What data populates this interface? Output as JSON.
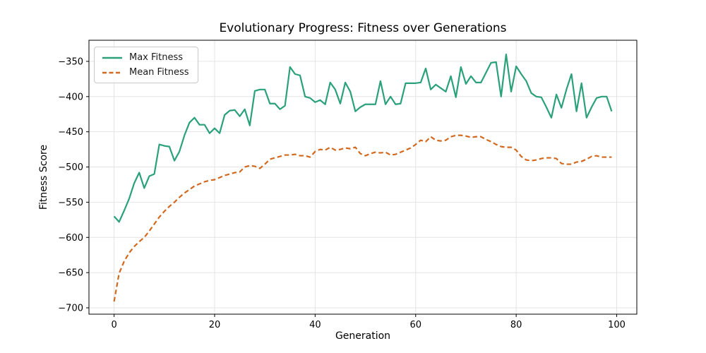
{
  "chart_data": {
    "type": "line",
    "title": "Evolutionary Progress: Fitness over Generations",
    "xlabel": "Generation",
    "ylabel": "Fitness Score",
    "xlim": [
      -5,
      104
    ],
    "ylim": [
      -709,
      -320
    ],
    "grid": true,
    "grid_color": "#e4e4e4",
    "spine_color": "#000000",
    "legend_position": "upper left",
    "xticks": [
      {
        "v": 0,
        "label": "0"
      },
      {
        "v": 20,
        "label": "20"
      },
      {
        "v": 40,
        "label": "40"
      },
      {
        "v": 60,
        "label": "60"
      },
      {
        "v": 80,
        "label": "80"
      },
      {
        "v": 100,
        "label": "100"
      }
    ],
    "yticks": [
      {
        "v": -350,
        "label": "−350"
      },
      {
        "v": -400,
        "label": "−400"
      },
      {
        "v": -450,
        "label": "−450"
      },
      {
        "v": -500,
        "label": "−500"
      },
      {
        "v": -550,
        "label": "−550"
      },
      {
        "v": -600,
        "label": "−600"
      },
      {
        "v": -650,
        "label": "−650"
      },
      {
        "v": -700,
        "label": "−700"
      }
    ],
    "x": [
      0,
      1,
      2,
      3,
      4,
      5,
      6,
      7,
      8,
      9,
      10,
      11,
      12,
      13,
      14,
      15,
      16,
      17,
      18,
      19,
      20,
      21,
      22,
      23,
      24,
      25,
      26,
      27,
      28,
      29,
      30,
      31,
      32,
      33,
      34,
      35,
      36,
      37,
      38,
      39,
      40,
      41,
      42,
      43,
      44,
      45,
      46,
      47,
      48,
      49,
      50,
      51,
      52,
      53,
      54,
      55,
      56,
      57,
      58,
      59,
      60,
      61,
      62,
      63,
      64,
      65,
      66,
      67,
      68,
      69,
      70,
      71,
      72,
      73,
      74,
      75,
      76,
      77,
      78,
      79,
      80,
      81,
      82,
      83,
      84,
      85,
      86,
      87,
      88,
      89,
      90,
      91,
      92,
      93,
      94,
      95,
      96,
      97,
      98,
      99
    ],
    "series": [
      {
        "name": "Max Fitness",
        "color": "#2aa179",
        "style": "solid",
        "values": [
          -570,
          -578,
          -562,
          -545,
          -523,
          -508,
          -530,
          -513,
          -510,
          -468,
          -470,
          -471,
          -491,
          -478,
          -455,
          -437,
          -430,
          -440,
          -440,
          -452,
          -445,
          -452,
          -426,
          -420,
          -419,
          -428,
          -418,
          -441,
          -392,
          -390,
          -390,
          -410,
          -410,
          -418,
          -413,
          -358,
          -368,
          -370,
          -400,
          -402,
          -408,
          -405,
          -411,
          -380,
          -390,
          -410,
          -380,
          -393,
          -421,
          -415,
          -411,
          -411,
          -411,
          -378,
          -411,
          -400,
          -411,
          -410,
          -381,
          -381,
          -381,
          -380,
          -360,
          -390,
          -383,
          -388,
          -393,
          -371,
          -401,
          -358,
          -382,
          -371,
          -380,
          -380,
          -366,
          -352,
          -351,
          -400,
          -340,
          -393,
          -357,
          -368,
          -378,
          -395,
          -400,
          -401,
          -415,
          -430,
          -397,
          -416,
          -390,
          -368,
          -421,
          -381,
          -430,
          -415,
          -402,
          -400,
          -400,
          -421
        ]
      },
      {
        "name": "Mean Fitness",
        "color": "#d2691e",
        "style": "dashed",
        "values": [
          -691,
          -651,
          -634,
          -622,
          -613,
          -606,
          -600,
          -591,
          -581,
          -571,
          -563,
          -556,
          -550,
          -543,
          -537,
          -532,
          -527,
          -524,
          -521,
          -519,
          -518,
          -515,
          -512,
          -510,
          -508,
          -507,
          -500,
          -498,
          -499,
          -502,
          -496,
          -489,
          -487,
          -485,
          -483,
          -483,
          -482,
          -484,
          -484,
          -486,
          -478,
          -475,
          -476,
          -472,
          -476,
          -475,
          -473,
          -474,
          -472,
          -481,
          -484,
          -481,
          -479,
          -480,
          -479,
          -483,
          -482,
          -479,
          -476,
          -473,
          -468,
          -462,
          -464,
          -457,
          -462,
          -463,
          -462,
          -457,
          -455,
          -455,
          -456,
          -458,
          -457,
          -457,
          -461,
          -464,
          -468,
          -471,
          -472,
          -472,
          -476,
          -485,
          -490,
          -491,
          -490,
          -488,
          -487,
          -487,
          -488,
          -495,
          -496,
          -496,
          -493,
          -492,
          -489,
          -485,
          -484,
          -486,
          -486,
          -486
        ]
      }
    ]
  }
}
